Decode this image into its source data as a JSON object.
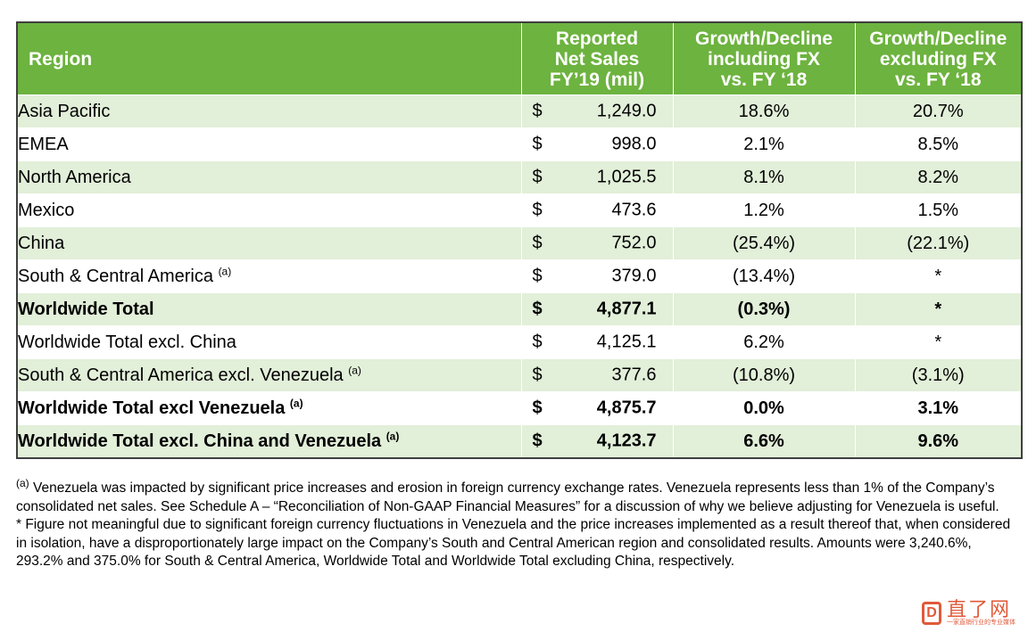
{
  "table": {
    "headers": {
      "region": "Region",
      "sales_l1": "Reported",
      "sales_l2": "Net Sales",
      "sales_l3": "FY’19 (mil)",
      "incl_l1": "Growth/Decline",
      "incl_l2": "including FX",
      "incl_l3": "vs. FY ‘18",
      "excl_l1": "Growth/Decline",
      "excl_l2": "excluding FX",
      "excl_l3": "vs. FY ‘18"
    },
    "rows": [
      {
        "region": "Asia Pacific",
        "sup": "",
        "currency": "$",
        "amount": "1,249.0",
        "incl": "18.6%",
        "excl": "20.7%"
      },
      {
        "region": "EMEA",
        "sup": "",
        "currency": "$",
        "amount": "998.0",
        "incl": "2.1%",
        "excl": "8.5%"
      },
      {
        "region": "North America",
        "sup": "",
        "currency": "$",
        "amount": "1,025.5",
        "incl": "8.1%",
        "excl": "8.2%"
      },
      {
        "region": "Mexico",
        "sup": "",
        "currency": "$",
        "amount": "473.6",
        "incl": "1.2%",
        "excl": "1.5%"
      },
      {
        "region": "China",
        "sup": "",
        "currency": "$",
        "amount": "752.0",
        "incl": "(25.4%)",
        "excl": "(22.1%)"
      },
      {
        "region": "South & Central America ",
        "sup": "(a)",
        "currency": "$",
        "amount": "379.0",
        "incl": "(13.4%)",
        "excl": "*"
      },
      {
        "region": "Worldwide Total",
        "sup": "",
        "currency": "$",
        "amount": "4,877.1",
        "incl": "(0.3%)",
        "excl": "*"
      },
      {
        "region": "Worldwide Total excl. China",
        "sup": "",
        "currency": "$",
        "amount": "4,125.1",
        "incl": "6.2%",
        "excl": "*"
      },
      {
        "region": "South & Central America excl. Venezuela ",
        "sup": "(a)",
        "currency": "$",
        "amount": "377.6",
        "incl": "(10.8%)",
        "excl": "(3.1%)"
      },
      {
        "region": "Worldwide Total excl Venezuela ",
        "sup": "(a)",
        "currency": "$",
        "amount": "4,875.7",
        "incl": "0.0%",
        "excl": "3.1%"
      },
      {
        "region": "Worldwide Total excl. China and Venezuela ",
        "sup": "(a)",
        "currency": "$",
        "amount": "4,123.7",
        "incl": "6.6%",
        "excl": "9.6%"
      }
    ]
  },
  "notes": {
    "a_marker": "(a)",
    "a_text": " Venezuela was impacted by significant price increases and erosion in foreign currency exchange rates. Venezuela represents less than 1% of the Company’s consolidated net sales.  See Schedule A – “Reconciliation of Non-GAAP Financial Measures” for a discussion of why we believe adjusting for Venezuela is useful.",
    "star_text": "* Figure not meaningful due to significant foreign currency fluctuations in Venezuela and the price increases implemented as a result thereof that, when considered in isolation, have a disproportionately large impact on the Company’s South and Central American region and consolidated results. Amounts were 3,240.6%, 293.2% and 375.0% for South & Central America, Worldwide Total and Worldwide Total excluding China, respectively."
  },
  "watermark": {
    "mark": "D",
    "main": "直了网",
    "sub": "一家直销行业的专业媒体"
  }
}
